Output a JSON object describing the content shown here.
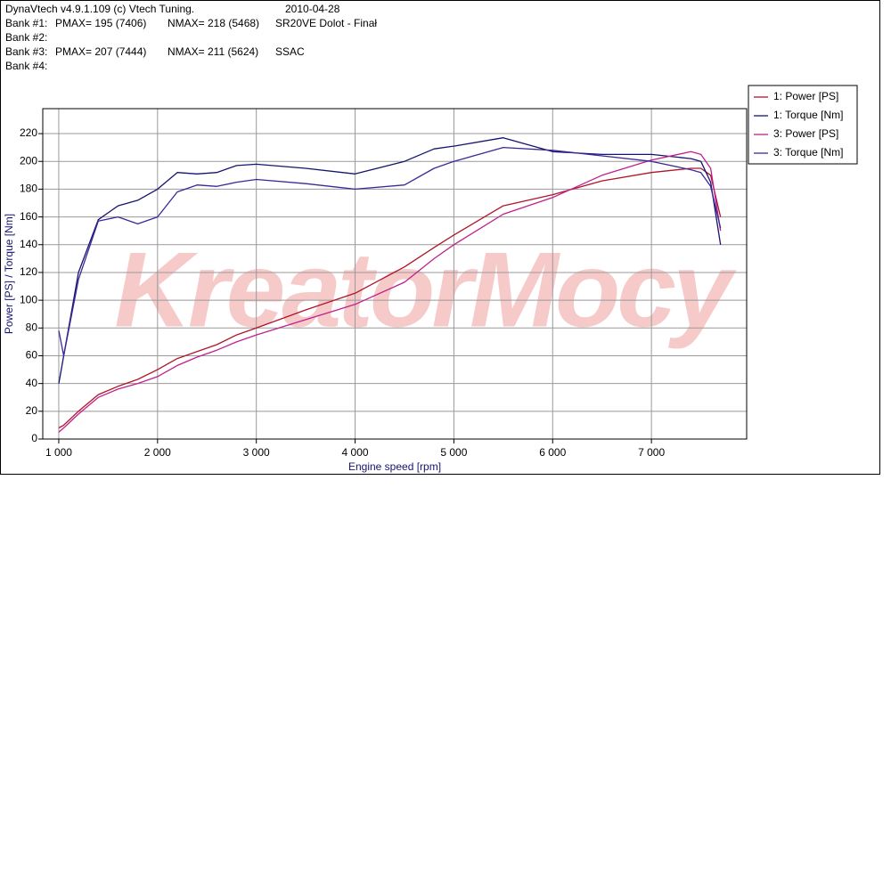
{
  "header": {
    "software": "DynaVtech v4.9.1.109 (c) Vtech Tuning.",
    "date": "2010-04-28",
    "banks": [
      {
        "label": "Bank #1:",
        "pmax": "PMAX= 195 (7406)",
        "nmax": "NMAX= 218 (5468)",
        "name": "SR20VE Dolot - Finał"
      },
      {
        "label": "Bank #2:"
      },
      {
        "label": "Bank #3:",
        "pmax": "PMAX= 207 (7444)",
        "nmax": "NMAX= 211 (5624)",
        "name": "SSAC"
      },
      {
        "label": "Bank #4:"
      }
    ]
  },
  "chart_data": {
    "type": "line",
    "watermark": "KreatorMocy",
    "xlabel": "Engine speed [rpm]",
    "ylabel": "Power [PS] / Torque [Nm]",
    "xlim": [
      838,
      7964
    ],
    "ylim": [
      0,
      238
    ],
    "xticks": [
      {
        "value": 1000,
        "label": "1 000"
      },
      {
        "value": 2000,
        "label": "2 000"
      },
      {
        "value": 3000,
        "label": "3 000"
      },
      {
        "value": 4000,
        "label": "4 000"
      },
      {
        "value": 5000,
        "label": "5 000"
      },
      {
        "value": 6000,
        "label": "6 000"
      },
      {
        "value": 7000,
        "label": "7 000"
      }
    ],
    "yticks": [
      0,
      20,
      40,
      60,
      80,
      100,
      120,
      140,
      160,
      180,
      200,
      220
    ],
    "grid": true,
    "legend": "top-right",
    "x": [
      1000,
      1050,
      1200,
      1400,
      1600,
      1800,
      2000,
      2200,
      2400,
      2600,
      2800,
      3000,
      3500,
      4000,
      4500,
      4800,
      5000,
      5500,
      6000,
      6500,
      7000,
      7400,
      7500,
      7600,
      7700
    ],
    "series": [
      {
        "name": "1: Power [PS]",
        "color": "#b01428",
        "values": [
          8,
          10,
          20,
          32,
          38,
          43,
          50,
          58,
          63,
          68,
          75,
          80,
          93,
          105,
          124,
          138,
          147,
          168,
          176,
          186,
          192,
          195,
          195,
          190,
          160
        ]
      },
      {
        "name": "1: Torque [Nm]",
        "color": "#14146e",
        "values": [
          40,
          60,
          120,
          158,
          168,
          172,
          180,
          192,
          191,
          192,
          197,
          198,
          195,
          191,
          200,
          209,
          211,
          217,
          207,
          205,
          205,
          202,
          200,
          185,
          140
        ]
      },
      {
        "name": "3: Power [PS]",
        "color": "#c0208c",
        "values": [
          5,
          8,
          18,
          30,
          36,
          40,
          45,
          53,
          59,
          64,
          70,
          75,
          86,
          97,
          113,
          130,
          140,
          162,
          174,
          190,
          201,
          207,
          205,
          195,
          150
        ]
      },
      {
        "name": "3: Torque [Nm]",
        "color": "#3c2896",
        "values": [
          78,
          60,
          115,
          157,
          160,
          155,
          160,
          178,
          183,
          182,
          185,
          187,
          184,
          180,
          183,
          195,
          200,
          210,
          208,
          204,
          200,
          194,
          192,
          182,
          152
        ]
      }
    ]
  }
}
